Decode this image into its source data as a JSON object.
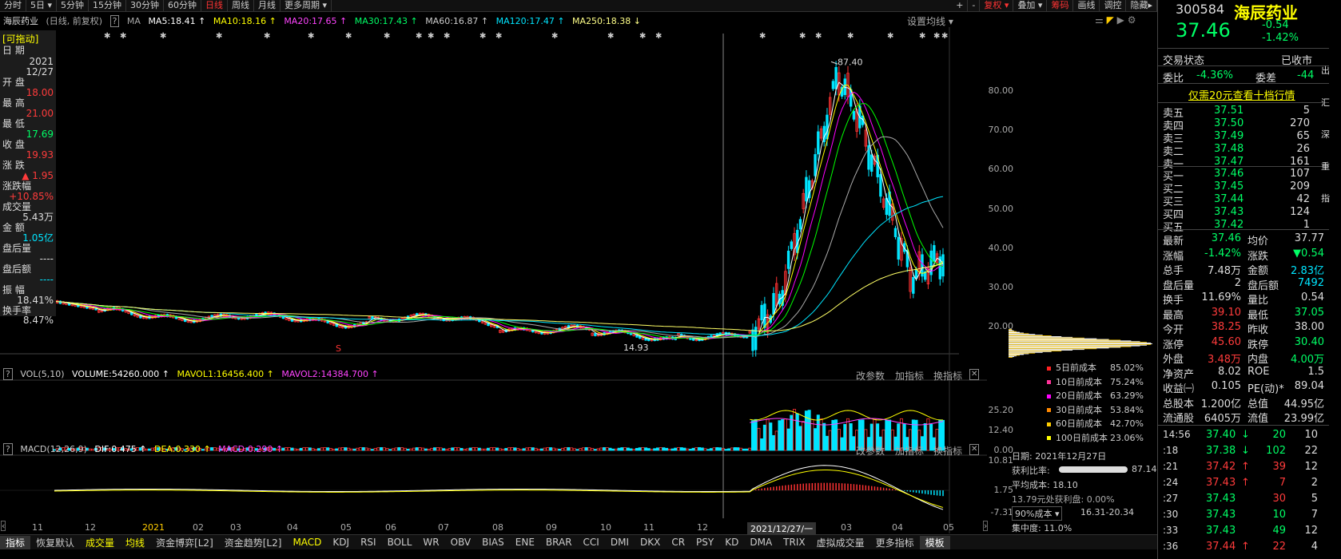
{
  "periods": [
    {
      "label": "分时",
      "active": false
    },
    {
      "label": "5日 ▾",
      "active": false
    },
    {
      "label": "5分钟",
      "active": false
    },
    {
      "label": "15分钟",
      "active": false
    },
    {
      "label": "30分钟",
      "active": false
    },
    {
      "label": "60分钟",
      "active": false
    },
    {
      "label": "日线",
      "active": true
    },
    {
      "label": "周线",
      "active": false
    },
    {
      "label": "月线",
      "active": false
    },
    {
      "label": "更多周期 ▾",
      "active": false
    }
  ],
  "toolbar_right": [
    "+",
    "-",
    "复权 ▾",
    "叠加 ▾",
    "筹码",
    "画线",
    "调控",
    "隐藏▸"
  ],
  "info": {
    "name": "海辰药业",
    "mode": "(日线, 前复权)",
    "ma": "MA",
    "ma5": "MA5:18.41 ↑",
    "ma10": "MA10:18.16 ↑",
    "ma20": "MA20:17.65 ↑",
    "ma30": "MA30:17.43 ↑",
    "ma60": "MA60:16.87 ↑",
    "ma120": "MA120:17.47 ↑",
    "ma250": "MA250:18.38 ↓",
    "settings": "设置均线 ▾"
  },
  "left_panel": {
    "draggable": "[可拖动]",
    "date_label": "日  期",
    "date_year": "2021",
    "date_md": "12/27",
    "open_label": "开  盘",
    "open": "18.00",
    "high_label": "最  高",
    "high": "21.00",
    "low_label": "最  低",
    "low": "17.69",
    "close_label": "收  盘",
    "close": "19.93",
    "chg_label": "涨  跌",
    "chg": "▲ 1.95",
    "pct_label": "涨跌幅",
    "pct": "+10.85%",
    "vol_label": "成交量",
    "vol": "5.43万",
    "amt_label": "金  额",
    "amt": "1.05亿",
    "after_vol_label": "盘后量",
    "after_vol": "----",
    "after_amt_label": "盘后额",
    "after_amt": "----",
    "amp_label": "振  幅",
    "amp": "18.41%",
    "turnover_label": "换手率",
    "turnover": "8.47%"
  },
  "price_axis": [
    "80.00",
    "70.00",
    "60.00",
    "50.00",
    "40.00",
    "30.00",
    "20.00"
  ],
  "peak_label": "87.40",
  "low_label": "14.93",
  "vol_header": {
    "title": "VOL(5,10)",
    "volume": "VOLUME:54260.000 ↑",
    "mavol1": "MAVOL1:16456.400 ↑",
    "mavol2": "MAVOL2:14384.700 ↑",
    "btn1": "改参数",
    "btn2": "加指标",
    "btn3": "换指标"
  },
  "vol_axis": [
    "25.20",
    "12.40",
    "0.00"
  ],
  "macd_header": {
    "title": "MACD(12,26,9)",
    "dif": "DIF:0.475 ↑",
    "dea": "DEA:0.330 ↑",
    "macd": "MACD:0.290 ↑",
    "btn1": "改参数",
    "btn2": "加指标",
    "btn3": "换指标"
  },
  "macd_axis": [
    "10.81",
    "1.75",
    "-7.31"
  ],
  "date_axis": [
    "11",
    "12",
    "2021",
    "02",
    "03",
    "04",
    "05",
    "06",
    "07",
    "08",
    "09",
    "10",
    "11",
    "12",
    "2021/12/27/一",
    "03",
    "04",
    "05"
  ],
  "tabs": [
    {
      "label": "指标",
      "style": "boxed"
    },
    {
      "label": "恢复默认",
      "style": ""
    },
    {
      "label": "成交量",
      "style": "on"
    },
    {
      "label": "均线",
      "style": "on"
    },
    {
      "label": "资金博弈[L2]",
      "style": ""
    },
    {
      "label": "资金趋势[L2]",
      "style": ""
    },
    {
      "label": "MACD",
      "style": "on"
    },
    {
      "label": "KDJ",
      "style": ""
    },
    {
      "label": "RSI",
      "style": ""
    },
    {
      "label": "BOLL",
      "style": ""
    },
    {
      "label": "WR",
      "style": ""
    },
    {
      "label": "OBV",
      "style": ""
    },
    {
      "label": "BIAS",
      "style": ""
    },
    {
      "label": "ENE",
      "style": ""
    },
    {
      "label": "BRAR",
      "style": ""
    },
    {
      "label": "CCI",
      "style": ""
    },
    {
      "label": "DMI",
      "style": ""
    },
    {
      "label": "DKX",
      "style": ""
    },
    {
      "label": "CR",
      "style": ""
    },
    {
      "label": "PSY",
      "style": ""
    },
    {
      "label": "KD",
      "style": ""
    },
    {
      "label": "DMA",
      "style": ""
    },
    {
      "label": "TRIX",
      "style": ""
    },
    {
      "label": "虚拟成交量",
      "style": ""
    },
    {
      "label": "更多指标",
      "style": ""
    },
    {
      "label": "模板",
      "style": "boxed"
    }
  ],
  "cost": {
    "rows": [
      {
        "label": "5日前成本",
        "value": "85.02%",
        "color": "#ff2222"
      },
      {
        "label": "10日前成本",
        "value": "75.24%",
        "color": "#ff3399"
      },
      {
        "label": "20日前成本",
        "value": "63.29%",
        "color": "#ff00ff"
      },
      {
        "label": "30日前成本",
        "value": "53.84%",
        "color": "#ff8800"
      },
      {
        "label": "60日前成本",
        "value": "42.70%",
        "color": "#ffcc00"
      },
      {
        "label": "100日前成本",
        "value": "23.06%",
        "color": "#ffff00"
      }
    ],
    "date": "日期: 2021年12月27日",
    "profit_ratio_label": "获利比率:",
    "profit_ratio": "87.14%",
    "avg_cost": "平均成本: 18.10",
    "profit_at": "13.79元处获利盘: 0.00%",
    "select": "90%成本 ▾",
    "range": "16.31-20.34",
    "concentration": "集中度: 11.0%"
  },
  "quote": {
    "code": "300584",
    "name": "海辰药业",
    "price": "37.46",
    "change": "-0.54",
    "pct": "-1.42%",
    "status_label": "交易状态",
    "status": "已收市",
    "weibi_label": "委比",
    "weibi": "-4.36%",
    "weicha_label": "委差",
    "weicha": "-44",
    "promo": "仅需20元查看十档行情",
    "asks": [
      {
        "label": "卖五",
        "price": "37.51",
        "vol": "5"
      },
      {
        "label": "卖四",
        "price": "37.50",
        "vol": "270"
      },
      {
        "label": "卖三",
        "price": "37.49",
        "vol": "65"
      },
      {
        "label": "卖二",
        "price": "37.48",
        "vol": "26"
      },
      {
        "label": "卖一",
        "price": "37.47",
        "vol": "161"
      }
    ],
    "bids": [
      {
        "label": "买一",
        "price": "37.46",
        "vol": "107"
      },
      {
        "label": "买二",
        "price": "37.45",
        "vol": "209"
      },
      {
        "label": "买三",
        "price": "37.44",
        "vol": "42"
      },
      {
        "label": "买四",
        "price": "37.43",
        "vol": "124"
      },
      {
        "label": "买五",
        "price": "37.42",
        "vol": "1"
      }
    ],
    "stats": [
      {
        "l1": "最新",
        "v1": "37.46",
        "c1": "grn",
        "l2": "均价",
        "v2": "37.77",
        "c2": "wht"
      },
      {
        "l1": "涨幅",
        "v1": "-1.42%",
        "c1": "grn",
        "l2": "涨跌",
        "v2": "▼0.54",
        "c2": "grn"
      },
      {
        "l1": "总手",
        "v1": "7.48万",
        "c1": "wht",
        "l2": "金额",
        "v2": "2.83亿",
        "c2": "cyn"
      },
      {
        "l1": "盘后量",
        "v1": "2",
        "c1": "wht",
        "l2": "盘后额",
        "v2": "7492",
        "c2": "cyn"
      },
      {
        "l1": "换手",
        "v1": "11.69%",
        "c1": "wht",
        "l2": "量比",
        "v2": "0.54",
        "c2": "wht"
      },
      {
        "l1": "最高",
        "v1": "39.10",
        "c1": "red",
        "l2": "最低",
        "v2": "37.05",
        "c2": "grn"
      },
      {
        "l1": "今开",
        "v1": "38.25",
        "c1": "red",
        "l2": "昨收",
        "v2": "38.00",
        "c2": "wht"
      },
      {
        "l1": "涨停",
        "v1": "45.60",
        "c1": "red",
        "l2": "跌停",
        "v2": "30.40",
        "c2": "grn"
      },
      {
        "l1": "外盘",
        "v1": "3.48万",
        "c1": "red",
        "l2": "内盘",
        "v2": "4.00万",
        "c2": "grn"
      },
      {
        "l1": "净资产",
        "v1": "8.02",
        "c1": "wht",
        "l2": "ROE",
        "v2": "1.5",
        "c2": "wht"
      },
      {
        "l1": "收益㈠",
        "v1": "0.105",
        "c1": "wht",
        "l2": "PE(动)*",
        "v2": "89.04",
        "c2": "wht"
      },
      {
        "l1": "总股本",
        "v1": "1.200亿",
        "c1": "wht",
        "l2": "总值",
        "v2": "44.95亿",
        "c2": "wht"
      },
      {
        "l1": "流通股",
        "v1": "6405万",
        "c1": "wht",
        "l2": "流值",
        "v2": "23.99亿",
        "c2": "wht"
      }
    ],
    "ticks": [
      {
        "t": "14:56",
        "p": "37.40",
        "a": "↓",
        "ac": "grn",
        "v": "20",
        "n": "10",
        "vc": "grn"
      },
      {
        "t": ":18",
        "p": "37.38",
        "a": "↓",
        "ac": "grn",
        "v": "102",
        "n": "22",
        "vc": "grn"
      },
      {
        "t": ":21",
        "p": "37.42",
        "a": "↑",
        "ac": "red",
        "v": "39",
        "n": "12",
        "vc": "red"
      },
      {
        "t": ":24",
        "p": "37.43",
        "a": "↑",
        "ac": "red",
        "v": "7",
        "n": "2",
        "vc": "red"
      },
      {
        "t": ":27",
        "p": "37.43",
        "a": "",
        "ac": "wht",
        "v": "30",
        "n": "5",
        "vc": "red"
      },
      {
        "t": ":30",
        "p": "37.43",
        "a": "",
        "ac": "wht",
        "v": "10",
        "n": "7",
        "vc": "grn"
      },
      {
        "t": ":33",
        "p": "37.43",
        "a": "",
        "ac": "wht",
        "v": "49",
        "n": "12",
        "vc": "grn"
      },
      {
        "t": ":36",
        "p": "37.44",
        "a": "↑",
        "ac": "red",
        "v": "22",
        "n": "4",
        "vc": "red"
      }
    ]
  },
  "side_tabs": [
    "出",
    "汇",
    "深",
    "重",
    "指"
  ],
  "colors": {
    "ma5": "#ffffff",
    "ma10": "#ffff00",
    "ma20": "#ff00ff",
    "ma30": "#00ff00",
    "ma60": "#aaaaaa",
    "ma120": "#00e5ff",
    "ma250": "#ffff66",
    "up": "#ff3333",
    "down": "#00e5ff"
  }
}
